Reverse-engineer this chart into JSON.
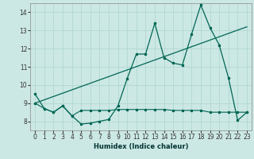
{
  "xlabel": "Humidex (Indice chaleur)",
  "background_color": "#cce8e4",
  "grid_color": "#b0d8d0",
  "line_color": "#006655",
  "xlim": [
    -0.5,
    23.5
  ],
  "ylim": [
    7.5,
    14.5
  ],
  "yticks": [
    8,
    9,
    10,
    11,
    12,
    13,
    14
  ],
  "xticks": [
    0,
    1,
    2,
    3,
    4,
    5,
    6,
    7,
    8,
    9,
    10,
    11,
    12,
    13,
    14,
    15,
    16,
    17,
    18,
    19,
    20,
    21,
    22,
    23
  ],
  "line1_x": [
    0,
    1,
    2,
    3,
    4,
    5,
    6,
    7,
    8,
    9,
    10,
    11,
    12,
    13,
    14,
    15,
    16,
    17,
    18,
    19,
    20,
    21,
    22,
    23
  ],
  "line1_y": [
    9.5,
    8.7,
    8.5,
    8.85,
    8.3,
    7.85,
    7.9,
    8.0,
    8.1,
    8.85,
    10.35,
    11.7,
    11.7,
    13.4,
    11.5,
    11.2,
    11.1,
    12.8,
    14.4,
    13.15,
    12.2,
    10.4,
    8.05,
    8.5
  ],
  "line2_x": [
    0,
    1,
    2,
    3,
    4,
    5,
    6,
    7,
    8,
    9,
    10,
    11,
    12,
    13,
    14,
    15,
    16,
    17,
    18,
    19,
    20,
    21,
    22,
    23
  ],
  "line2_y": [
    9.0,
    8.7,
    8.5,
    8.85,
    8.3,
    8.6,
    8.6,
    8.6,
    8.6,
    8.65,
    8.65,
    8.65,
    8.65,
    8.65,
    8.65,
    8.6,
    8.6,
    8.6,
    8.6,
    8.5,
    8.5,
    8.5,
    8.5,
    8.5
  ],
  "line3_x": [
    0,
    23
  ],
  "line3_y": [
    9.0,
    13.2
  ]
}
